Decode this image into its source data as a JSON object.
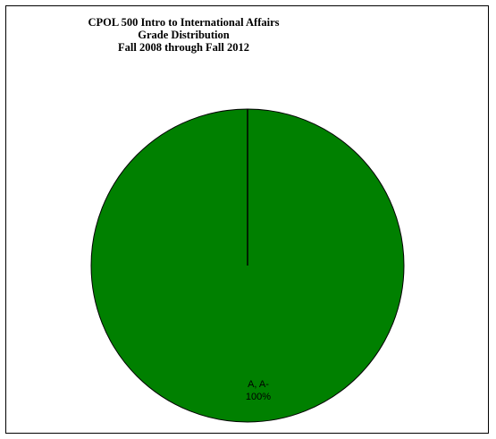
{
  "chart_data": {
    "type": "pie",
    "title": [
      "CPOL 500 Intro to International Affairs",
      "Grade Distribution",
      "Fall 2008 through Fall 2012"
    ],
    "slices": [
      {
        "label": "A, A-",
        "value": 100,
        "value_label": "100%",
        "color": "#008000"
      }
    ],
    "legend": "none"
  }
}
